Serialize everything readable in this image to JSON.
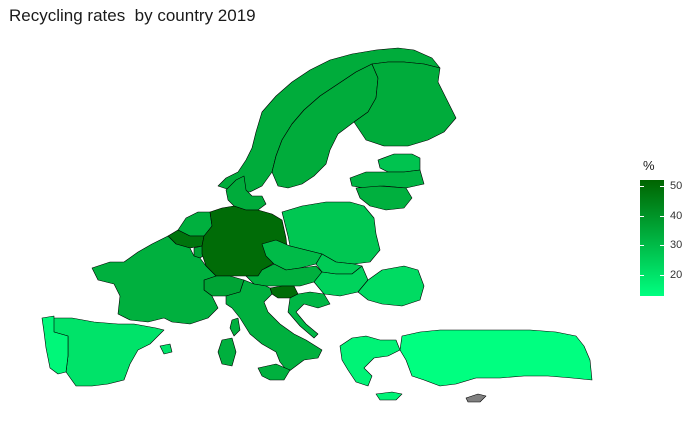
{
  "title": "Recycling rates  by country 2019",
  "legend": {
    "title": "%",
    "ticks": [
      {
        "value": 20,
        "label": "20"
      },
      {
        "value": 30,
        "label": "30"
      },
      {
        "value": 40,
        "label": "40"
      },
      {
        "value": 50,
        "label": "50"
      }
    ],
    "min": 13,
    "max": 52,
    "color_low": "#00ff80",
    "color_high": "#006400"
  },
  "no_data_color": "#808080",
  "regions": [
    {
      "name": "norway",
      "value": 34
    },
    {
      "name": "sweden",
      "value": 34
    },
    {
      "name": "finland",
      "value": 34
    },
    {
      "name": "estonia",
      "value": 28
    },
    {
      "name": "latvia",
      "value": 32
    },
    {
      "name": "lithuania",
      "value": 33
    },
    {
      "name": "denmark",
      "value": 34
    },
    {
      "name": "netherlands",
      "value": 33
    },
    {
      "name": "belgium",
      "value": 48
    },
    {
      "name": "luxembourg",
      "value": 36
    },
    {
      "name": "germany",
      "value": 50
    },
    {
      "name": "poland",
      "value": 27
    },
    {
      "name": "czechia",
      "value": 30
    },
    {
      "name": "slovakia",
      "value": 26
    },
    {
      "name": "austria",
      "value": 33
    },
    {
      "name": "hungary",
      "value": 24
    },
    {
      "name": "slovenia",
      "value": 50
    },
    {
      "name": "croatia",
      "value": 31
    },
    {
      "name": "romania",
      "value": 22
    },
    {
      "name": "switzerland",
      "value": 36
    },
    {
      "name": "france",
      "value": 33
    },
    {
      "name": "italy",
      "value": 33
    },
    {
      "name": "corsica",
      "value": 33
    },
    {
      "name": "sardinia",
      "value": 33
    },
    {
      "name": "sicily",
      "value": 33
    },
    {
      "name": "spain",
      "value": 20
    },
    {
      "name": "portugal",
      "value": 15
    },
    {
      "name": "balearics",
      "value": 20
    },
    {
      "name": "greece",
      "value": 16
    },
    {
      "name": "crete",
      "value": 16
    },
    {
      "name": "turkey",
      "value": 13
    },
    {
      "name": "cyprus",
      "value": null
    }
  ]
}
